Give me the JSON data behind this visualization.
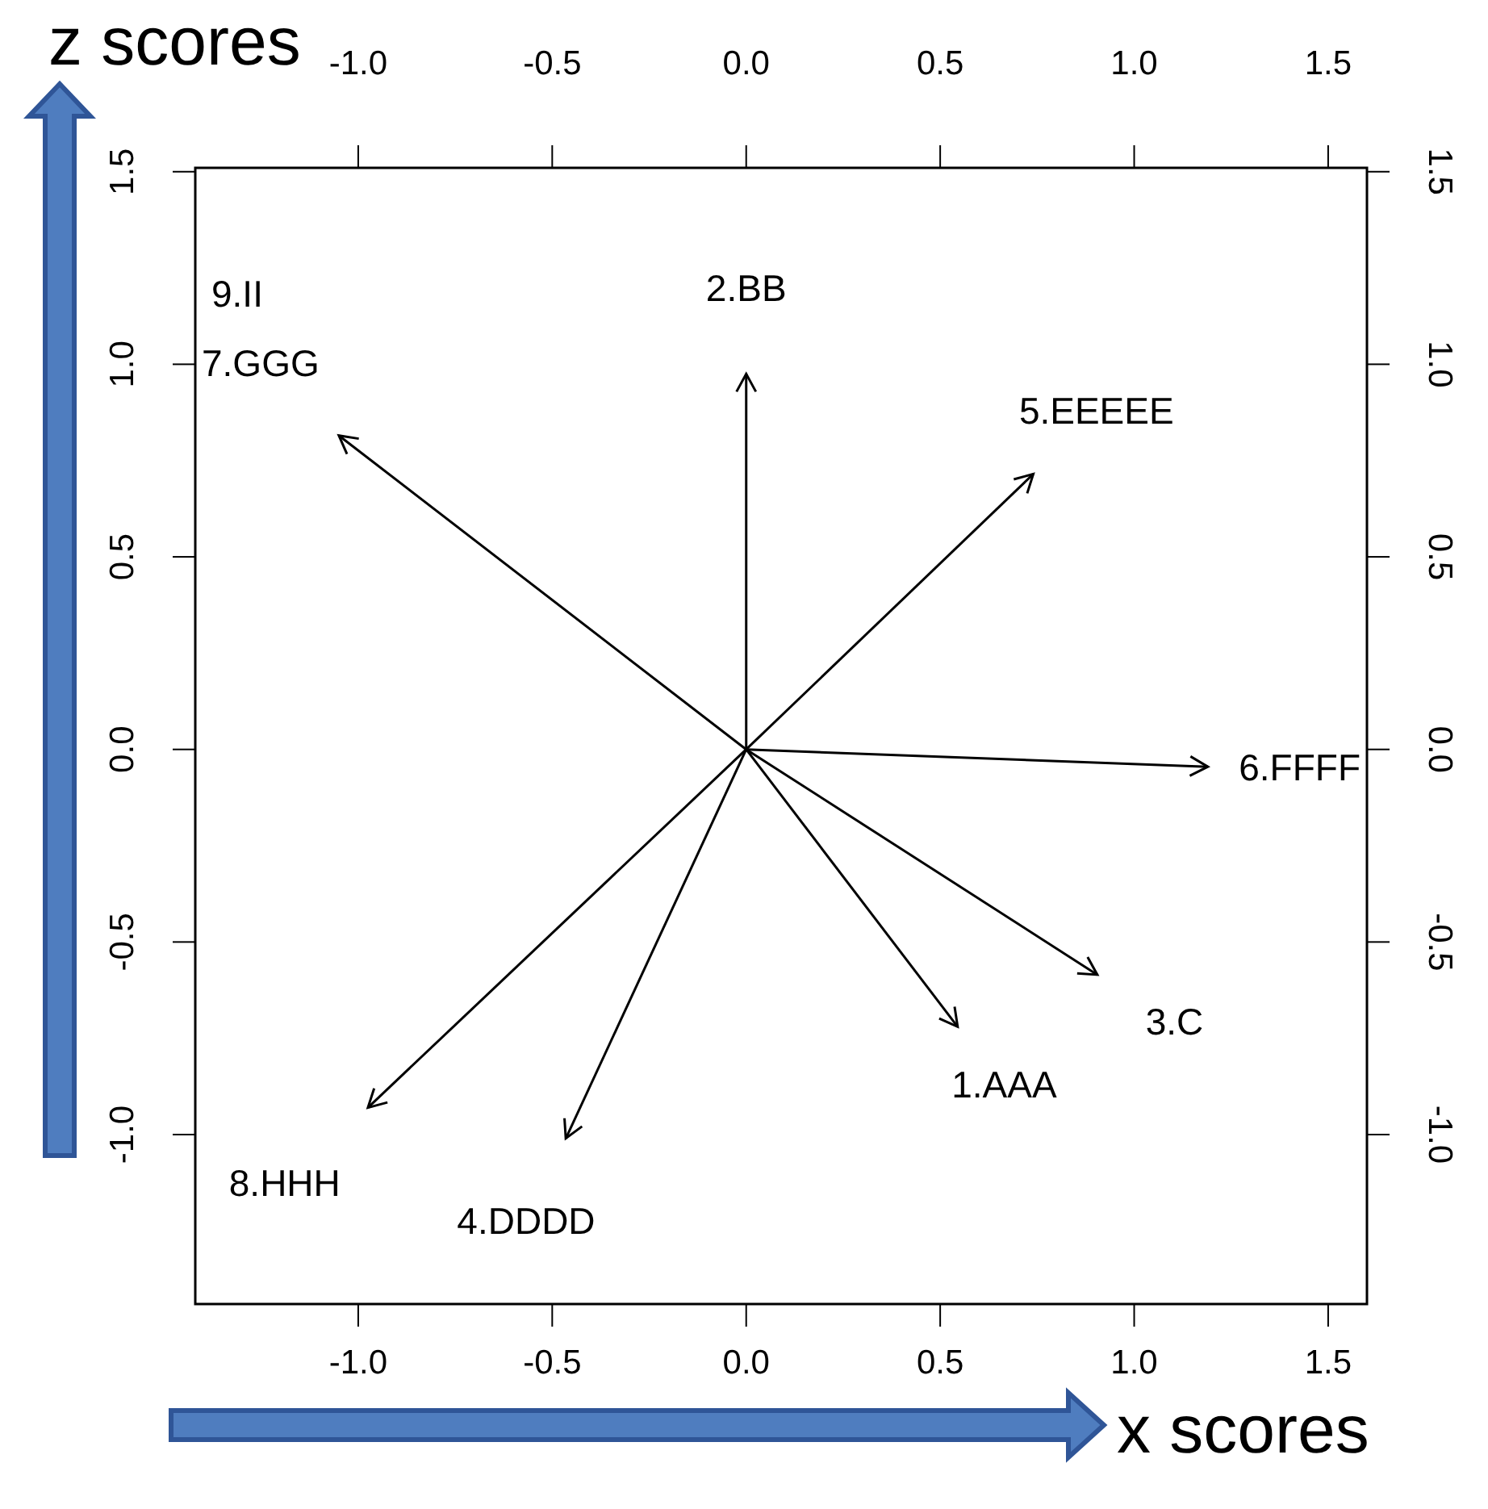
{
  "chart_data": {
    "type": "line",
    "xlabel": "x scores",
    "ylabel": "z scores",
    "xlim": [
      -1.42,
      1.6
    ],
    "ylim": [
      -1.44,
      1.51
    ],
    "x2lim": [
      -1.42,
      1.6
    ],
    "y2lim": [
      -1.44,
      1.51
    ],
    "xticks": [
      {
        "value": -1,
        "label": "-1.0"
      },
      {
        "value": -0.5,
        "label": "-0.5"
      },
      {
        "value": 0,
        "label": "0.0"
      },
      {
        "value": 0.5,
        "label": "0.5"
      },
      {
        "value": 1,
        "label": "1.0"
      },
      {
        "value": 1.5,
        "label": "1.5"
      }
    ],
    "x2ticks": [
      {
        "value": -1,
        "label": "-1.0"
      },
      {
        "value": -0.5,
        "label": "-0.5"
      },
      {
        "value": 0,
        "label": "0.0"
      },
      {
        "value": 0.5,
        "label": "0.5"
      },
      {
        "value": 1,
        "label": "1.0"
      },
      {
        "value": 1.5,
        "label": "1.5"
      }
    ],
    "yticks": [
      {
        "value": -1,
        "label": "-1.0"
      },
      {
        "value": -0.5,
        "label": "-0.5"
      },
      {
        "value": 0,
        "label": "0.0"
      },
      {
        "value": 0.5,
        "label": "0.5"
      },
      {
        "value": 1,
        "label": "1.0"
      },
      {
        "value": 1.5,
        "label": "1.5"
      }
    ],
    "y2ticks": [
      {
        "value": -1,
        "label": "-1.0"
      },
      {
        "value": -0.5,
        "label": "-0.5"
      },
      {
        "value": 0,
        "label": "0.0"
      },
      {
        "value": 0.5,
        "label": "0.5"
      },
      {
        "value": 1,
        "label": "1.0"
      },
      {
        "value": 1.5,
        "label": "1.5"
      }
    ],
    "marker": "none",
    "line_style": "solid",
    "series": [
      {
        "name": "1.AAA",
        "color": "#000000",
        "x": [
          0,
          0.545
        ],
        "values": [
          0,
          -0.72
        ]
      },
      {
        "name": "2.BB",
        "color": "#000000",
        "x": [
          0,
          0
        ],
        "values": [
          0,
          0.975
        ]
      },
      {
        "name": "3.C",
        "color": "#000000",
        "x": [
          0,
          0.905
        ],
        "values": [
          0,
          -0.585
        ]
      },
      {
        "name": "4.DDDD",
        "color": "#000000",
        "x": [
          0,
          -0.465
        ],
        "values": [
          0,
          -1.01
        ]
      },
      {
        "name": "5.EEEEE",
        "color": "#000000",
        "x": [
          0,
          0.74
        ],
        "values": [
          0,
          0.715
        ]
      },
      {
        "name": "6.FFFF",
        "color": "#000000",
        "x": [
          0,
          1.19
        ],
        "values": [
          0,
          -0.045
        ]
      },
      {
        "name": "7.GGG",
        "color": "#000000",
        "x": [
          0,
          -1.05
        ],
        "values": [
          0,
          0.815
        ]
      },
      {
        "name": "8.HHH",
        "color": "#000000",
        "x": [
          0,
          -0.975
        ],
        "values": [
          0,
          -0.93
        ]
      }
    ],
    "annotations": [
      "9.II"
    ]
  }
}
